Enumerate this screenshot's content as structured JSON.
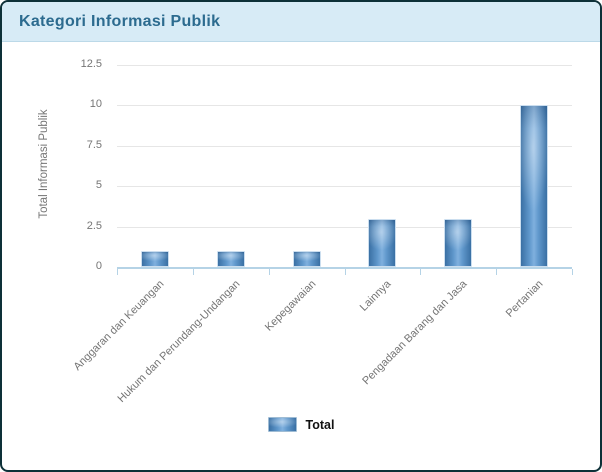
{
  "card": {
    "title": "Kategori Informasi Publik"
  },
  "chart_data": {
    "type": "bar",
    "title": "Kategori Informasi Publik",
    "categories": [
      "Anggaran dan Keuangan",
      "Hukum dan Perundang-Undangan",
      "Kepegawaian",
      "Lainnya",
      "Pengadaan Barang dan Jasa",
      "Pertanian"
    ],
    "series": [
      {
        "name": "Total",
        "values": [
          1,
          1,
          1,
          3,
          3,
          10
        ]
      }
    ],
    "xlabel": "",
    "ylabel": "Total Informasi Publik",
    "yticks": [
      "0",
      "2.5",
      "5",
      "7.5",
      "10",
      "12.5"
    ],
    "ytick_values": [
      0,
      2.5,
      5,
      7.5,
      10,
      12.5
    ],
    "ylim": [
      0,
      12.5
    ],
    "grid": true,
    "legend_position": "bottom"
  },
  "legend": {
    "items": [
      {
        "label": "Total"
      }
    ]
  },
  "colors": {
    "header_bg": "#d7ebf6",
    "header_border": "#bcd9e8",
    "title_text": "#2c6b8f",
    "card_border": "#0d3038",
    "gridline": "#e6e6e6",
    "axis_line": "#b5d3e6",
    "tick_text": "#757575",
    "bar_edge": "#3a70a4",
    "bar_highlight": "#7fb0de",
    "legend_text": "#111111"
  }
}
